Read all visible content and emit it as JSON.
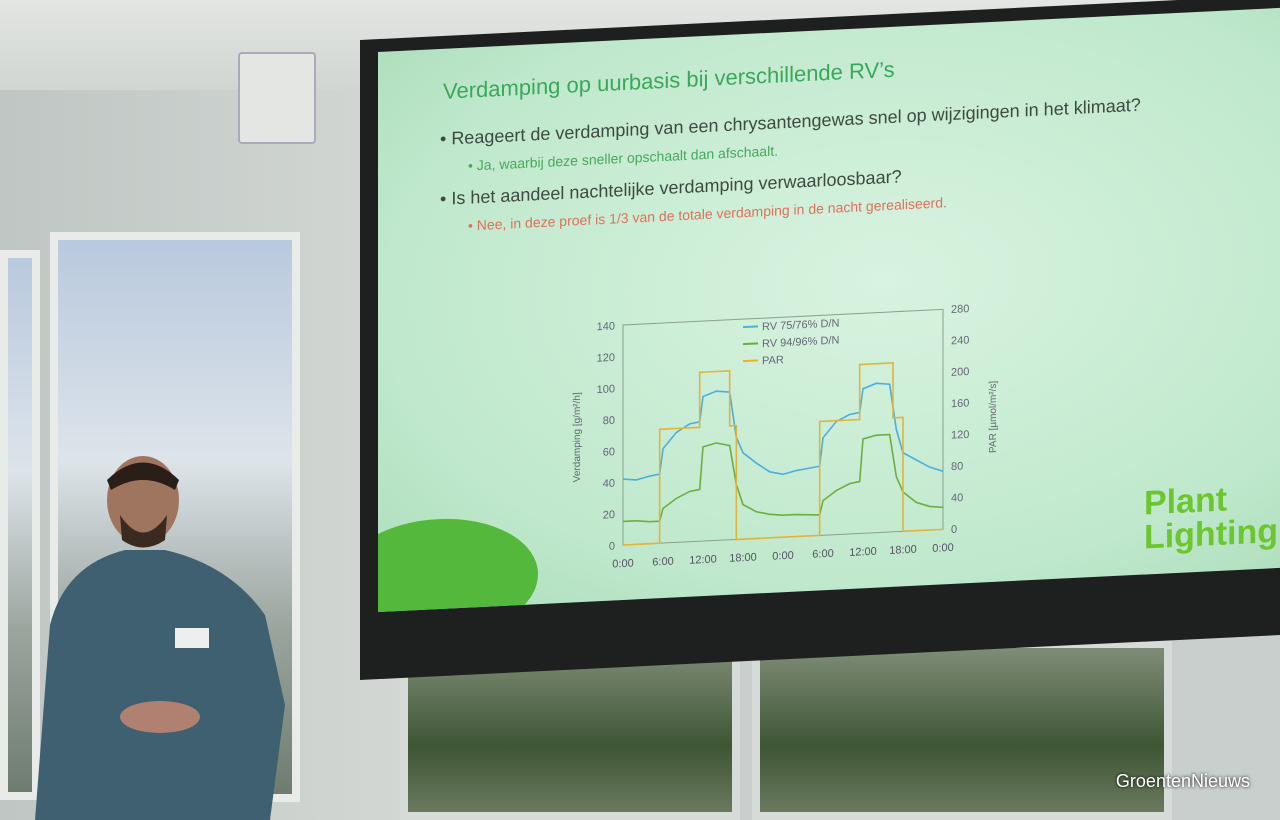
{
  "slide": {
    "title": "Verdamping op uurbasis bij verschillende RV’s",
    "bullets": [
      {
        "text": "Reageert de verdamping van een chrysantengewas snel op wijzigingen in het klimaat?",
        "sub": "Ja, waarbij deze sneller opschaalt dan afschaalt."
      },
      {
        "text": "Is het aandeel nachtelijke verdamping verwaarloosbaar?",
        "sub": "Nee, in deze proef is 1/3 van de totale verdamping in de nacht gerealiseerd."
      }
    ],
    "logo": "Plant Lighting",
    "colors": {
      "title": "#3aa85a",
      "answer1": "#49a85a",
      "answer2": "#e0705a"
    }
  },
  "chart_data": {
    "type": "line",
    "ylabel": "Verdamping [g/m²/h]",
    "y2label": "PAR [µmol/m²/s]",
    "ylim": [
      0,
      140
    ],
    "y2lim": [
      0,
      280
    ],
    "yticks": [
      "0",
      "20",
      "40",
      "60",
      "80",
      "100",
      "120",
      "140"
    ],
    "y2ticks": [
      "0",
      "40",
      "80",
      "120",
      "160",
      "200",
      "240",
      "280"
    ],
    "xticks": [
      "0:00",
      "6:00",
      "12:00",
      "18:00",
      "0:00",
      "6:00",
      "12:00",
      "18:00",
      "0:00"
    ],
    "xlim_hours": [
      0,
      48
    ],
    "legend_position": "top-center",
    "series": [
      {
        "name": "RV 75/76% D/N",
        "color": "#4aaee0",
        "axis": "left",
        "x": [
          0,
          2,
          4,
          5.5,
          6,
          8,
          10,
          11.5,
          12,
          14,
          16,
          17,
          18,
          20,
          22,
          24,
          26,
          29.5,
          30,
          32,
          34,
          35.5,
          36,
          38,
          40,
          41,
          42,
          44,
          46,
          48
        ],
        "y": [
          42,
          41,
          43,
          44,
          60,
          70,
          75,
          76,
          92,
          95,
          94,
          65,
          55,
          48,
          42,
          40,
          42,
          44,
          62,
          72,
          76,
          77,
          92,
          95,
          94,
          65,
          50,
          45,
          40,
          37
        ]
      },
      {
        "name": "RV 94/96% D/N",
        "color": "#6ab040",
        "axis": "left",
        "x": [
          0,
          2,
          4,
          5.5,
          6,
          8,
          10,
          11.5,
          12,
          14,
          16,
          17,
          18,
          20,
          22,
          24,
          26,
          29.5,
          30,
          32,
          34,
          35.5,
          36,
          38,
          40,
          41,
          42,
          44,
          46,
          48
        ],
        "y": [
          15,
          15,
          14,
          14,
          22,
          28,
          32,
          33,
          60,
          62,
          60,
          35,
          22,
          17,
          15,
          14,
          14,
          13,
          22,
          28,
          32,
          33,
          60,
          62,
          62,
          35,
          25,
          18,
          15,
          14
        ]
      },
      {
        "name": "PAR",
        "color": "#e2b43a",
        "axis": "right",
        "x": [
          0,
          5.5,
          5.5,
          11.5,
          11.5,
          16,
          16,
          17,
          17,
          29.5,
          29.5,
          35.5,
          35.5,
          40.5,
          40.5,
          42,
          42,
          48
        ],
        "y": [
          0,
          0,
          145,
          145,
          215,
          215,
          145,
          145,
          0,
          0,
          145,
          145,
          215,
          215,
          145,
          145,
          0,
          0
        ]
      }
    ]
  },
  "watermark": "GroentenNieuws"
}
